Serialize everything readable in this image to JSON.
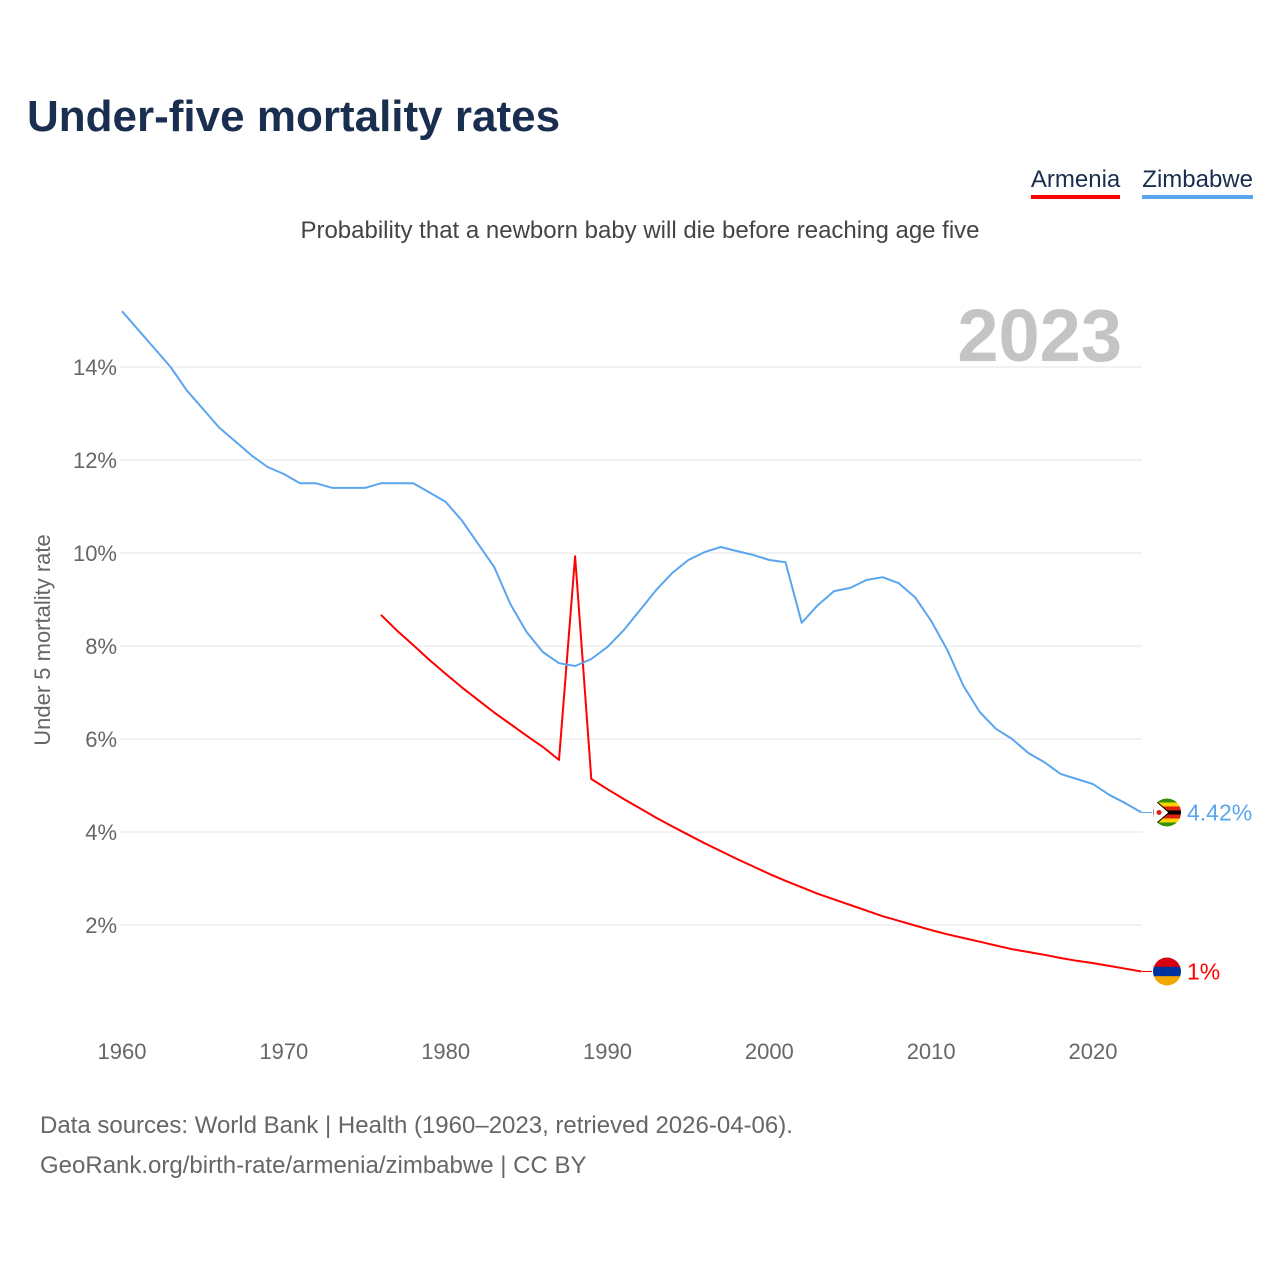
{
  "title": "Under-five mortality rates",
  "subtitle": "Probability that a newborn baby will die before reaching age five",
  "footer": {
    "line1": "Data sources: World Bank | Health (1960–2023, retrieved 2026-04-06).",
    "line2": "GeoRank.org/birth-rate/armenia/zimbabwe | CC BY"
  },
  "chart_data": {
    "type": "line",
    "title": "Under-five mortality rates",
    "year_label": "2023",
    "xlabel": "",
    "ylabel": "Under 5 mortality rate",
    "xlim": [
      1960,
      2023
    ],
    "ylim": [
      0,
      15.2
    ],
    "grid": true,
    "legend_position": "top-right",
    "x_ticks": [
      1960,
      1970,
      1980,
      1990,
      2000,
      2010,
      2020
    ],
    "y_ticks": [
      2,
      4,
      6,
      8,
      10,
      12,
      14
    ],
    "y_tick_labels": [
      "2%",
      "4%",
      "6%",
      "8%",
      "10%",
      "12%",
      "14%"
    ],
    "x_tick_labels": [
      "1960",
      "1970",
      "1980",
      "1990",
      "2000",
      "2010",
      "2020"
    ],
    "series": [
      {
        "name": "Armenia",
        "color": "#ff0000",
        "flag": "armenia-flag",
        "end_label": "1%",
        "start_year": 1976,
        "values": [
          8.67,
          8.33,
          8.02,
          7.7,
          7.4,
          7.11,
          6.84,
          6.57,
          6.32,
          6.07,
          5.83,
          5.55,
          9.93,
          5.14,
          4.92,
          4.71,
          4.51,
          4.31,
          4.12,
          3.94,
          3.76,
          3.59,
          3.42,
          3.26,
          3.1,
          2.95,
          2.81,
          2.67,
          2.55,
          2.43,
          2.31,
          2.19,
          2.09,
          1.99,
          1.89,
          1.8,
          1.72,
          1.64,
          1.56,
          1.48,
          1.42,
          1.36,
          1.29,
          1.23,
          1.18,
          1.12,
          1.06,
          1.0
        ]
      },
      {
        "name": "Zimbabwe",
        "color": "#5aa5ee",
        "flag": "zimbabwe-flag",
        "end_label": "4.42%",
        "start_year": 1960,
        "values": [
          15.2,
          14.8,
          14.4,
          14.0,
          13.5,
          13.1,
          12.7,
          12.4,
          12.1,
          11.85,
          11.7,
          11.5,
          11.5,
          11.4,
          11.4,
          11.4,
          11.5,
          11.5,
          11.5,
          11.3,
          11.1,
          10.7,
          10.2,
          9.7,
          8.9,
          8.3,
          7.87,
          7.63,
          7.57,
          7.72,
          7.98,
          8.34,
          8.77,
          9.2,
          9.57,
          9.85,
          10.02,
          10.13,
          10.04,
          9.96,
          9.85,
          9.8,
          8.5,
          8.88,
          9.18,
          9.25,
          9.42,
          9.48,
          9.35,
          9.05,
          8.54,
          7.91,
          7.14,
          6.58,
          6.22,
          6.0,
          5.7,
          5.5,
          5.25,
          5.14,
          5.03,
          4.8,
          4.62,
          4.42
        ]
      }
    ]
  }
}
